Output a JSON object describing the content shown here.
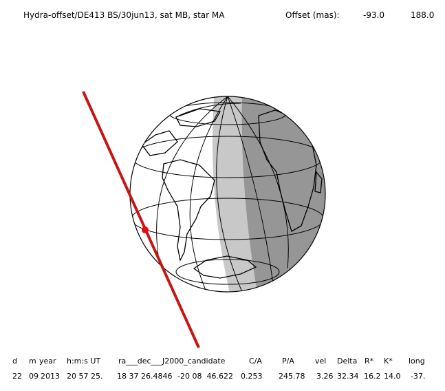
{
  "header": {
    "title": "Hydra-offset/DE413 BS/30jun13, sat MB, star MA",
    "offset_label": "Offset (mas):",
    "offset_values": [
      "-93.0",
      "188.0"
    ]
  },
  "table": {
    "headers": [
      "d",
      "m",
      "year",
      "h:m:s UT",
      "ra___dec___J2000_candidate",
      "C/A",
      "P/A",
      "vel",
      "Delta",
      "R*",
      "K*",
      "long"
    ],
    "rows": [
      [
        "22",
        "09",
        "2013",
        "20 57 25.",
        "18 37 26.4846",
        "-20 08  46.622",
        "0.253",
        "245.78",
        "3.26",
        "32.34",
        "16.2",
        "14.0",
        "-37."
      ]
    ]
  }
}
